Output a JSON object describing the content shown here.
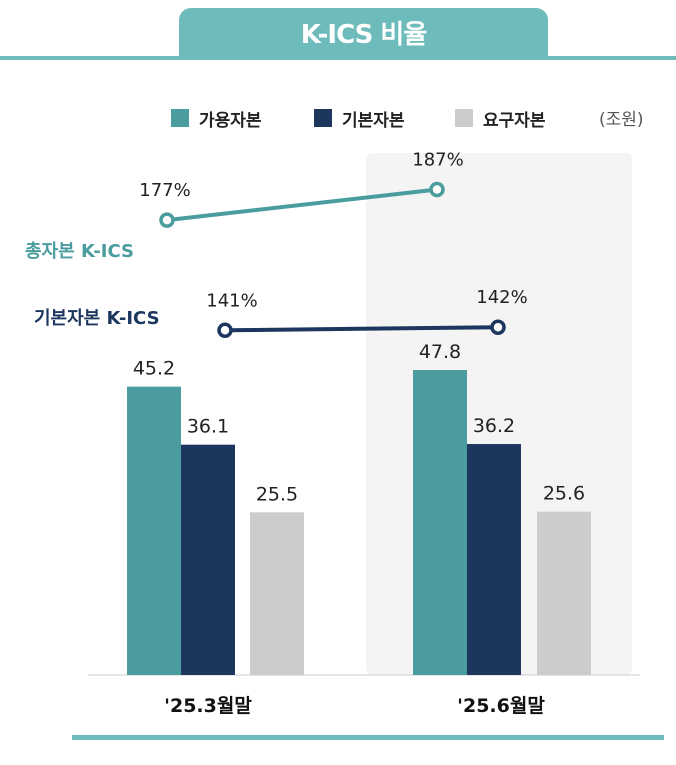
{
  "title": "K-ICS 비율",
  "unit": "(조원)",
  "colors": {
    "header": "#6dbbbb",
    "available": "#4a9c9e",
    "basic": "#1c365e",
    "required": "#cccccc",
    "highlight_bg": "#f4f4f4"
  },
  "chart_data": {
    "type": "bar",
    "categories": [
      "'25.3월말",
      "'25.6월말"
    ],
    "series": [
      {
        "name": "가용자본",
        "values": [
          45.2,
          47.8
        ],
        "value_labels": [
          "45.2",
          "47.8"
        ]
      },
      {
        "name": "기본자본",
        "values": [
          36.1,
          36.2
        ],
        "value_labels": [
          "36.1",
          "36.2"
        ]
      },
      {
        "name": "요구자본",
        "values": [
          25.5,
          25.6
        ],
        "value_labels": [
          "25.5",
          "25.6"
        ]
      }
    ],
    "lines": [
      {
        "name": "총자본 K-ICS",
        "values": [
          177,
          187
        ],
        "value_labels": [
          "177%",
          "187%"
        ]
      },
      {
        "name": "기본자본 K-ICS",
        "values": [
          141,
          142
        ],
        "value_labels": [
          "141%",
          "142%"
        ]
      }
    ],
    "legend_position": "top-right",
    "highlighted_category": "'25.6월말",
    "grid": false
  }
}
